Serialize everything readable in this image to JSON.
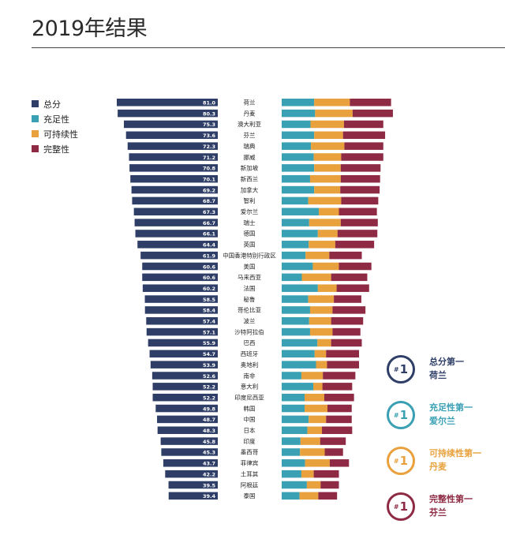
{
  "page": {
    "title": "2019年结果"
  },
  "legend": [
    {
      "label": "总分",
      "color": "#2e3e66"
    },
    {
      "label": "充足性",
      "color": "#3aa0b4"
    },
    {
      "label": "可持续性",
      "color": "#e8a13c"
    },
    {
      "label": "完整性",
      "color": "#8e2a44"
    }
  ],
  "rankings": [
    {
      "badge": "1",
      "title": "总分第一",
      "country": "荷兰",
      "color": "#2e3e66"
    },
    {
      "badge": "1",
      "title": "充足性第一",
      "country": "爱尔兰",
      "color": "#3aa0b4"
    },
    {
      "badge": "1",
      "title": "可持续性第一",
      "country": "丹麦",
      "color": "#e8a13c"
    },
    {
      "badge": "1",
      "title": "完整性第一",
      "country": "芬兰",
      "color": "#8e2a44"
    }
  ],
  "chart_data": {
    "type": "bar",
    "title": "2019年结果",
    "categories": [
      "荷兰",
      "丹麦",
      "澳大利亚",
      "芬兰",
      "瑞典",
      "挪威",
      "新加坡",
      "新西兰",
      "加拿大",
      "智利",
      "爱尔兰",
      "瑞士",
      "德国",
      "英国",
      "中国香港特别行政区",
      "美国",
      "马来西亚",
      "法国",
      "秘鲁",
      "哥伦比亚",
      "波兰",
      "沙特阿拉伯",
      "巴西",
      "西班牙",
      "奥地利",
      "南非",
      "意大利",
      "印度尼西亚",
      "韩国",
      "中国",
      "日本",
      "印度",
      "墨西哥",
      "菲律宾",
      "土耳其",
      "阿根廷",
      "泰国"
    ],
    "series": [
      {
        "name": "总分",
        "values": [
          81.0,
          80.3,
          75.3,
          73.6,
          72.3,
          71.2,
          70.8,
          70.1,
          69.2,
          68.7,
          67.3,
          66.7,
          66.1,
          64.4,
          61.9,
          60.6,
          60.6,
          60.2,
          58.5,
          58.4,
          57.4,
          57.1,
          55.9,
          54.7,
          53.9,
          52.6,
          52.2,
          52.2,
          49.8,
          48.7,
          48.3,
          45.8,
          45.3,
          43.7,
          42.2,
          39.5,
          39.4
        ]
      },
      {
        "name": "充足性",
        "values": [
          71,
          73,
          63,
          71,
          64,
          70,
          71,
          62,
          71,
          58,
          81,
          60,
          79,
          59,
          52,
          68,
          44,
          79,
          58,
          62,
          60,
          62,
          78,
          72,
          75,
          43,
          69,
          50,
          50,
          59,
          56,
          41,
          40,
          51,
          43,
          55,
          39
        ]
      },
      {
        "name": "可持续性",
        "values": [
          78,
          82,
          73,
          63,
          73,
          60,
          58,
          67,
          57,
          72,
          44,
          69,
          43,
          58,
          52,
          57,
          64,
          41,
          56,
          49,
          48,
          49,
          30,
          25,
          24,
          47,
          20,
          43,
          50,
          38,
          32,
          43,
          54,
          54,
          27,
          30,
          41
        ]
      },
      {
        "name": "完整性",
        "values": [
          90,
          88,
          86,
          92,
          85,
          92,
          87,
          86,
          86,
          81,
          83,
          81,
          87,
          85,
          71,
          71,
          79,
          71,
          60,
          72,
          70,
          61,
          67,
          72,
          70,
          71,
          65,
          65,
          53,
          56,
          66,
          56,
          40,
          42,
          55,
          40,
          41
        ]
      }
    ],
    "xlim": [
      0,
      100
    ],
    "legend_position": "top-left"
  }
}
